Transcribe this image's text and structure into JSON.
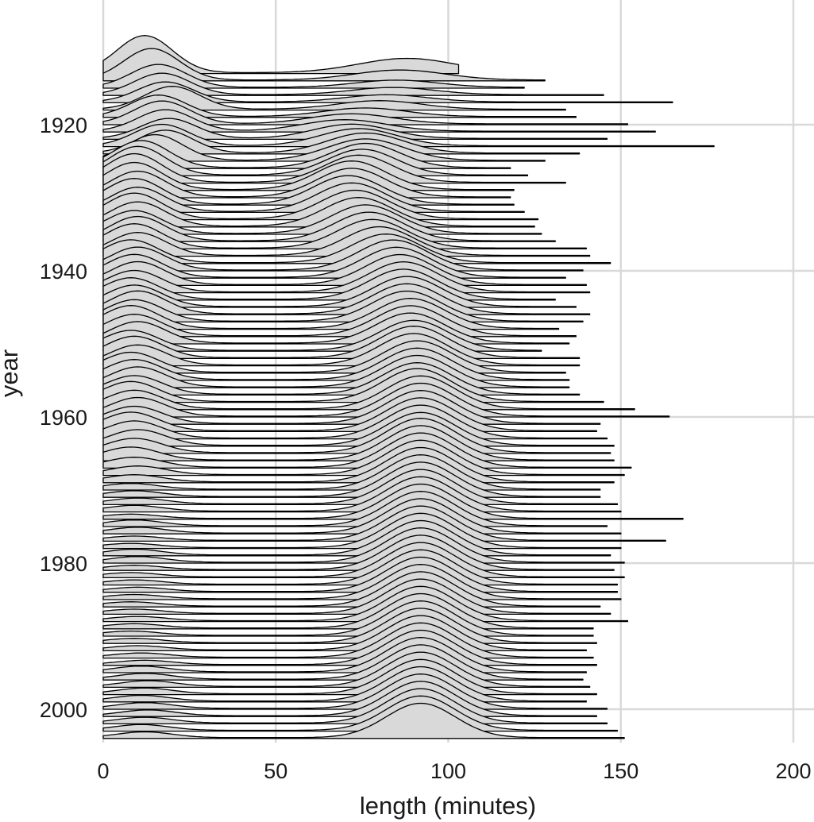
{
  "chart_data": {
    "type": "ridgeline",
    "title": "",
    "xlabel": "length (minutes)",
    "ylabel": "year",
    "xlim": [
      0,
      200
    ],
    "ylim": [
      2005,
      1907
    ],
    "x_ticks": [
      0,
      50,
      100,
      150,
      200
    ],
    "x_tick_labels": [
      "0",
      "50",
      "100",
      "150",
      "200"
    ],
    "y_ticks": [
      1920,
      1940,
      1960,
      1980,
      2000
    ],
    "y_tick_labels": [
      "1920",
      "1940",
      "1960",
      "1980",
      "2000"
    ],
    "grid": true,
    "fill_color": "#d9d9d9",
    "line_color": "#000000",
    "years": [
      1913,
      1914,
      1915,
      1916,
      1917,
      1918,
      1919,
      1920,
      1921,
      1922,
      1923,
      1924,
      1925,
      1926,
      1927,
      1928,
      1929,
      1930,
      1931,
      1932,
      1933,
      1934,
      1935,
      1936,
      1937,
      1938,
      1939,
      1940,
      1941,
      1942,
      1943,
      1944,
      1945,
      1946,
      1947,
      1948,
      1949,
      1950,
      1951,
      1952,
      1953,
      1954,
      1955,
      1956,
      1957,
      1958,
      1959,
      1960,
      1961,
      1962,
      1963,
      1964,
      1965,
      1966,
      1967,
      1968,
      1969,
      1970,
      1971,
      1972,
      1973,
      1974,
      1975,
      1976,
      1977,
      1978,
      1979,
      1980,
      1981,
      1982,
      1983,
      1984,
      1985,
      1986,
      1987,
      1988,
      1989,
      1990,
      1991,
      1992,
      1993,
      1994,
      1995,
      1996,
      1997,
      1998,
      1999,
      2000,
      2001,
      2002,
      2003,
      2004
    ],
    "length_range_min": [
      0,
      0,
      0,
      0,
      0,
      0,
      0,
      0,
      0,
      0,
      0,
      0,
      0,
      0,
      0,
      0,
      0,
      0,
      0,
      0,
      0,
      0,
      0,
      0,
      0,
      0,
      0,
      0,
      0,
      0,
      0,
      0,
      0,
      0,
      0,
      0,
      0,
      0,
      0,
      0,
      0,
      0,
      0,
      0,
      0,
      0,
      0,
      0,
      0,
      0,
      0,
      0,
      0,
      0,
      0,
      0,
      0,
      0,
      0,
      0,
      0,
      0,
      0,
      0,
      0,
      0,
      0,
      0,
      0,
      0,
      0,
      0,
      0,
      0,
      0,
      0,
      0,
      0,
      0,
      0,
      0,
      0,
      0,
      0,
      0,
      0,
      0,
      0,
      0,
      0,
      0,
      0
    ],
    "length_range_max": [
      103,
      128,
      122,
      145,
      165,
      134,
      137,
      152,
      160,
      146,
      177,
      138,
      128,
      118,
      123,
      134,
      119,
      118,
      119,
      122,
      126,
      125,
      127,
      131,
      140,
      141,
      147,
      139,
      134,
      140,
      141,
      131,
      137,
      141,
      139,
      132,
      137,
      135,
      127,
      138,
      138,
      134,
      135,
      135,
      138,
      145,
      154,
      164,
      144,
      143,
      146,
      148,
      147,
      148,
      153,
      151,
      148,
      144,
      144,
      149,
      150,
      168,
      146,
      150,
      163,
      150,
      147,
      151,
      148,
      151,
      149,
      149,
      150,
      144,
      147,
      152,
      142,
      142,
      143,
      140,
      142,
      143,
      140,
      139,
      141,
      143,
      140,
      146,
      143,
      146,
      149,
      151
    ],
    "short_film_peak": [
      [
        12,
        2.6
      ],
      [
        14,
        2.2
      ],
      [
        16,
        1.6
      ],
      [
        17,
        1.5
      ],
      [
        18,
        1.4
      ],
      [
        20,
        1.6
      ],
      [
        16,
        1.5
      ],
      [
        17,
        1.6
      ],
      [
        18,
        1.5
      ],
      [
        19,
        1.4
      ],
      [
        17,
        1.5
      ],
      [
        18,
        1.6
      ],
      [
        15,
        1.8
      ],
      [
        11,
        1.9
      ],
      [
        10,
        2.0
      ],
      [
        9,
        2.0
      ],
      [
        9,
        1.9
      ],
      [
        10,
        1.8
      ],
      [
        9,
        1.8
      ],
      [
        10,
        1.7
      ],
      [
        9,
        1.8
      ],
      [
        10,
        1.7
      ],
      [
        9,
        1.6
      ],
      [
        10,
        1.7
      ],
      [
        9,
        1.7
      ],
      [
        10,
        1.6
      ],
      [
        8,
        1.6
      ],
      [
        10,
        1.6
      ],
      [
        9,
        1.6
      ],
      [
        10,
        1.6
      ],
      [
        9,
        1.5
      ],
      [
        8,
        1.5
      ],
      [
        9,
        1.5
      ],
      [
        10,
        1.6
      ],
      [
        9,
        1.5
      ],
      [
        8,
        1.6
      ],
      [
        9,
        1.5
      ],
      [
        10,
        1.5
      ],
      [
        8,
        1.4
      ],
      [
        9,
        1.5
      ],
      [
        10,
        1.4
      ],
      [
        8,
        1.4
      ],
      [
        9,
        1.4
      ],
      [
        10,
        1.4
      ],
      [
        9,
        1.3
      ],
      [
        8,
        1.4
      ],
      [
        9,
        1.3
      ],
      [
        10,
        1.3
      ],
      [
        9,
        1.2
      ],
      [
        8,
        1.3
      ],
      [
        9,
        1.2
      ],
      [
        10,
        1.1
      ],
      [
        9,
        1.0
      ],
      [
        8,
        0.9
      ],
      [
        9,
        0.7
      ],
      [
        10,
        0.6
      ],
      [
        9,
        0.5
      ],
      [
        8,
        0.4
      ],
      [
        9,
        0.4
      ],
      [
        10,
        0.4
      ],
      [
        9,
        0.4
      ],
      [
        8,
        0.3
      ],
      [
        9,
        0.4
      ],
      [
        10,
        0.4
      ],
      [
        9,
        0.3
      ],
      [
        8,
        0.3
      ],
      [
        9,
        0.4
      ],
      [
        10,
        0.4
      ],
      [
        9,
        0.3
      ],
      [
        8,
        0.3
      ],
      [
        9,
        0.3
      ],
      [
        10,
        0.3
      ],
      [
        9,
        0.3
      ],
      [
        8,
        0.3
      ],
      [
        9,
        0.3
      ],
      [
        10,
        0.3
      ],
      [
        9,
        0.3
      ],
      [
        8,
        0.3
      ],
      [
        9,
        0.3
      ],
      [
        10,
        0.3
      ],
      [
        11,
        0.3
      ],
      [
        12,
        0.3
      ],
      [
        11,
        0.4
      ],
      [
        12,
        0.4
      ],
      [
        13,
        0.4
      ],
      [
        12,
        0.4
      ],
      [
        11,
        0.4
      ],
      [
        12,
        0.4
      ],
      [
        13,
        0.4
      ],
      [
        12,
        0.4
      ],
      [
        11,
        0.4
      ],
      [
        12,
        0.4
      ]
    ],
    "feature_film_peak": [
      [
        88,
        1.0
      ],
      [
        86,
        0.7
      ],
      [
        85,
        0.5
      ],
      [
        84,
        0.5
      ],
      [
        82,
        0.5
      ],
      [
        80,
        0.6
      ],
      [
        76,
        0.6
      ],
      [
        72,
        0.7
      ],
      [
        70,
        0.8
      ],
      [
        72,
        1.0
      ],
      [
        74,
        1.2
      ],
      [
        76,
        1.4
      ],
      [
        76,
        1.5
      ],
      [
        76,
        1.7
      ],
      [
        75,
        1.8
      ],
      [
        74,
        1.9
      ],
      [
        72,
        2.0
      ],
      [
        72,
        2.0
      ],
      [
        71,
        2.0
      ],
      [
        72,
        2.0
      ],
      [
        73,
        2.0
      ],
      [
        74,
        2.0
      ],
      [
        76,
        2.0
      ],
      [
        77,
        2.0
      ],
      [
        78,
        2.0
      ],
      [
        80,
        2.0
      ],
      [
        82,
        2.0
      ],
      [
        84,
        2.1
      ],
      [
        85,
        2.1
      ],
      [
        86,
        2.1
      ],
      [
        87,
        2.1
      ],
      [
        87,
        2.1
      ],
      [
        88,
        2.1
      ],
      [
        88,
        2.1
      ],
      [
        88,
        2.1
      ],
      [
        89,
        2.1
      ],
      [
        89,
        2.1
      ],
      [
        89,
        2.1
      ],
      [
        90,
        2.1
      ],
      [
        90,
        2.2
      ],
      [
        90,
        2.2
      ],
      [
        91,
        2.2
      ],
      [
        91,
        2.2
      ],
      [
        91,
        2.2
      ],
      [
        91,
        2.2
      ],
      [
        91,
        2.3
      ],
      [
        92,
        2.3
      ],
      [
        92,
        2.3
      ],
      [
        92,
        2.3
      ],
      [
        92,
        2.3
      ],
      [
        92,
        2.3
      ],
      [
        92,
        2.3
      ],
      [
        92,
        2.4
      ],
      [
        92,
        2.4
      ],
      [
        92,
        2.4
      ],
      [
        92,
        2.4
      ],
      [
        92,
        2.4
      ],
      [
        92,
        2.4
      ],
      [
        92,
        2.4
      ],
      [
        92,
        2.4
      ],
      [
        92,
        2.4
      ],
      [
        92,
        2.4
      ],
      [
        92,
        2.4
      ],
      [
        92,
        2.4
      ],
      [
        92,
        2.4
      ],
      [
        92,
        2.4
      ],
      [
        92,
        2.4
      ],
      [
        92,
        2.4
      ],
      [
        92,
        2.4
      ],
      [
        92,
        2.4
      ],
      [
        92,
        2.4
      ],
      [
        92,
        2.4
      ],
      [
        92,
        2.4
      ],
      [
        92,
        2.4
      ],
      [
        92,
        2.4
      ],
      [
        92,
        2.4
      ],
      [
        92,
        2.4
      ],
      [
        92,
        2.4
      ],
      [
        92,
        2.4
      ],
      [
        92,
        2.4
      ],
      [
        92,
        2.4
      ],
      [
        92,
        2.4
      ],
      [
        92,
        2.4
      ],
      [
        92,
        2.4
      ],
      [
        92,
        2.4
      ],
      [
        92,
        2.4
      ],
      [
        92,
        2.4
      ],
      [
        92,
        2.4
      ],
      [
        92,
        2.4
      ],
      [
        92,
        2.4
      ],
      [
        92,
        2.4
      ],
      [
        92,
        2.4
      ]
    ],
    "feature_film_spread": [
      14,
      13,
      12,
      12,
      12,
      12,
      12,
      12,
      12,
      11,
      11,
      11,
      11,
      10,
      10,
      10,
      10,
      10,
      10,
      10,
      10,
      10,
      10,
      10,
      10,
      10,
      10,
      10,
      10,
      10,
      10,
      10,
      10,
      10,
      10,
      10,
      10,
      10,
      10,
      10,
      10,
      10,
      10,
      10,
      10,
      10,
      10,
      10,
      10,
      10,
      10,
      10,
      10,
      10,
      10,
      10,
      10,
      10,
      10,
      10,
      10,
      10,
      10,
      10,
      10,
      10,
      10,
      10,
      10,
      10,
      10,
      10,
      10,
      10,
      10,
      10,
      10,
      10,
      10,
      10,
      10,
      10,
      10,
      10,
      10,
      10,
      10,
      10,
      10,
      10,
      10,
      10
    ]
  }
}
